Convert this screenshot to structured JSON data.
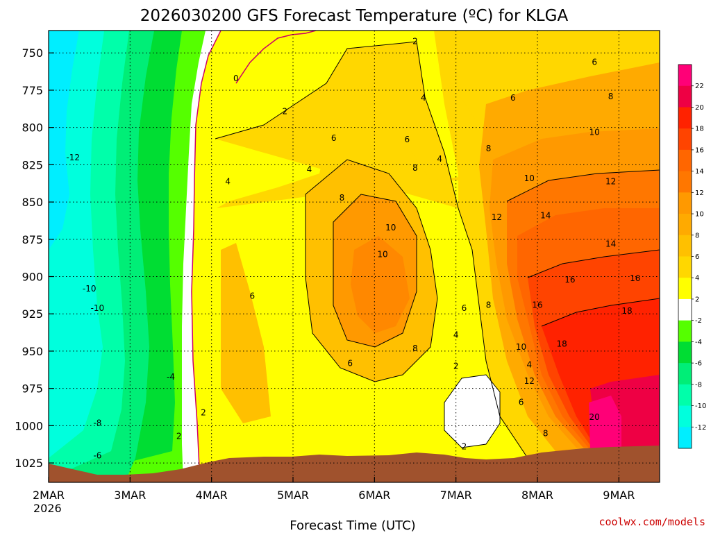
{
  "chart_data": {
    "type": "heatmap",
    "title": "2026030200 GFS Forecast Temperature (ºC) for KLGA",
    "xlabel": "Forecast Time (UTC)",
    "ylabel": "Pressure (mb)",
    "year": "2026",
    "source": "coolwx.com/models",
    "source_color": "#cc0000",
    "x_ticks": [
      "2MAR",
      "3MAR",
      "4MAR",
      "5MAR",
      "6MAR",
      "7MAR",
      "8MAR",
      "9MAR"
    ],
    "y_ticks": [
      "750",
      "775",
      "800",
      "825",
      "850",
      "875",
      "900",
      "925",
      "950",
      "975",
      "1000",
      "1025"
    ],
    "y_range": [
      735,
      1038
    ],
    "x_range_days": [
      0,
      7.5
    ],
    "legend": {
      "labels": [
        "22",
        "20",
        "18",
        "16",
        "14",
        "12",
        "10",
        "8",
        "6",
        "4",
        "2",
        "-2",
        "-4",
        "-6",
        "-8",
        "-10",
        "-12"
      ],
      "colors": [
        "#ff0077",
        "#ee0044",
        "#ff2200",
        "#ff4400",
        "#ff6600",
        "#ff7700",
        "#ff9900",
        "#ffaa00",
        "#ffc000",
        "#ffd700",
        "#ffff00",
        "#ffffff",
        "#55ff00",
        "#00dd33",
        "#00ee77",
        "#00ffaa",
        "#00ffdd",
        "#00eeff"
      ]
    },
    "contour_labels": [
      {
        "text": "0",
        "day": 2.3,
        "p": 769
      },
      {
        "text": "2",
        "day": 4.5,
        "p": 744
      },
      {
        "text": "2",
        "day": 2.9,
        "p": 791
      },
      {
        "text": "-12",
        "day": 0.3,
        "p": 822
      },
      {
        "text": "4",
        "day": 2.2,
        "p": 838
      },
      {
        "text": "4",
        "day": 3.2,
        "p": 830
      },
      {
        "text": "4",
        "day": 4.6,
        "p": 782
      },
      {
        "text": "6",
        "day": 3.5,
        "p": 809
      },
      {
        "text": "6",
        "day": 4.4,
        "p": 810
      },
      {
        "text": "4",
        "day": 4.8,
        "p": 823
      },
      {
        "text": "6",
        "day": 6.7,
        "p": 758
      },
      {
        "text": "6",
        "day": 5.7,
        "p": 782
      },
      {
        "text": "8",
        "day": 5.4,
        "p": 816
      },
      {
        "text": "8",
        "day": 4.5,
        "p": 829
      },
      {
        "text": "8",
        "day": 3.6,
        "p": 849
      },
      {
        "text": "10",
        "day": 5.9,
        "p": 836
      },
      {
        "text": "8",
        "day": 6.9,
        "p": 781
      },
      {
        "text": "10",
        "day": 6.7,
        "p": 805
      },
      {
        "text": "12",
        "day": 6.9,
        "p": 838
      },
      {
        "text": "12",
        "day": 5.5,
        "p": 862
      },
      {
        "text": "14",
        "day": 6.1,
        "p": 861
      },
      {
        "text": "14",
        "day": 6.9,
        "p": 880
      },
      {
        "text": "10",
        "day": 4.2,
        "p": 869
      },
      {
        "text": "10",
        "day": 4.1,
        "p": 887
      },
      {
        "text": "6",
        "day": 2.5,
        "p": 915
      },
      {
        "text": "16",
        "day": 6.4,
        "p": 904
      },
      {
        "text": "16",
        "day": 7.2,
        "p": 903
      },
      {
        "text": "-10",
        "day": 0.5,
        "p": 910
      },
      {
        "text": "-10",
        "day": 0.6,
        "p": 923
      },
      {
        "text": "16",
        "day": 6.0,
        "p": 921
      },
      {
        "text": "18",
        "day": 7.1,
        "p": 925
      },
      {
        "text": "6",
        "day": 5.1,
        "p": 923
      },
      {
        "text": "8",
        "day": 5.4,
        "p": 921
      },
      {
        "text": "4",
        "day": 5.0,
        "p": 941
      },
      {
        "text": "18",
        "day": 6.3,
        "p": 947
      },
      {
        "text": "10",
        "day": 5.8,
        "p": 949
      },
      {
        "text": "8",
        "day": 4.5,
        "p": 950
      },
      {
        "text": "6",
        "day": 3.7,
        "p": 960
      },
      {
        "text": "2",
        "day": 5.0,
        "p": 962
      },
      {
        "text": "4",
        "day": 5.9,
        "p": 961
      },
      {
        "text": "-4",
        "day": 1.5,
        "p": 969
      },
      {
        "text": "12",
        "day": 5.9,
        "p": 972
      },
      {
        "text": "6",
        "day": 5.8,
        "p": 986
      },
      {
        "text": "2",
        "day": 1.9,
        "p": 993
      },
      {
        "text": "-8",
        "day": 0.6,
        "p": 1000
      },
      {
        "text": "20",
        "day": 6.7,
        "p": 996
      },
      {
        "text": "8",
        "day": 6.1,
        "p": 1007
      },
      {
        "text": "2",
        "day": 1.6,
        "p": 1009
      },
      {
        "text": "-6",
        "day": 0.6,
        "p": 1022
      },
      {
        "text": "2",
        "day": 5.1,
        "p": 1016
      }
    ]
  }
}
